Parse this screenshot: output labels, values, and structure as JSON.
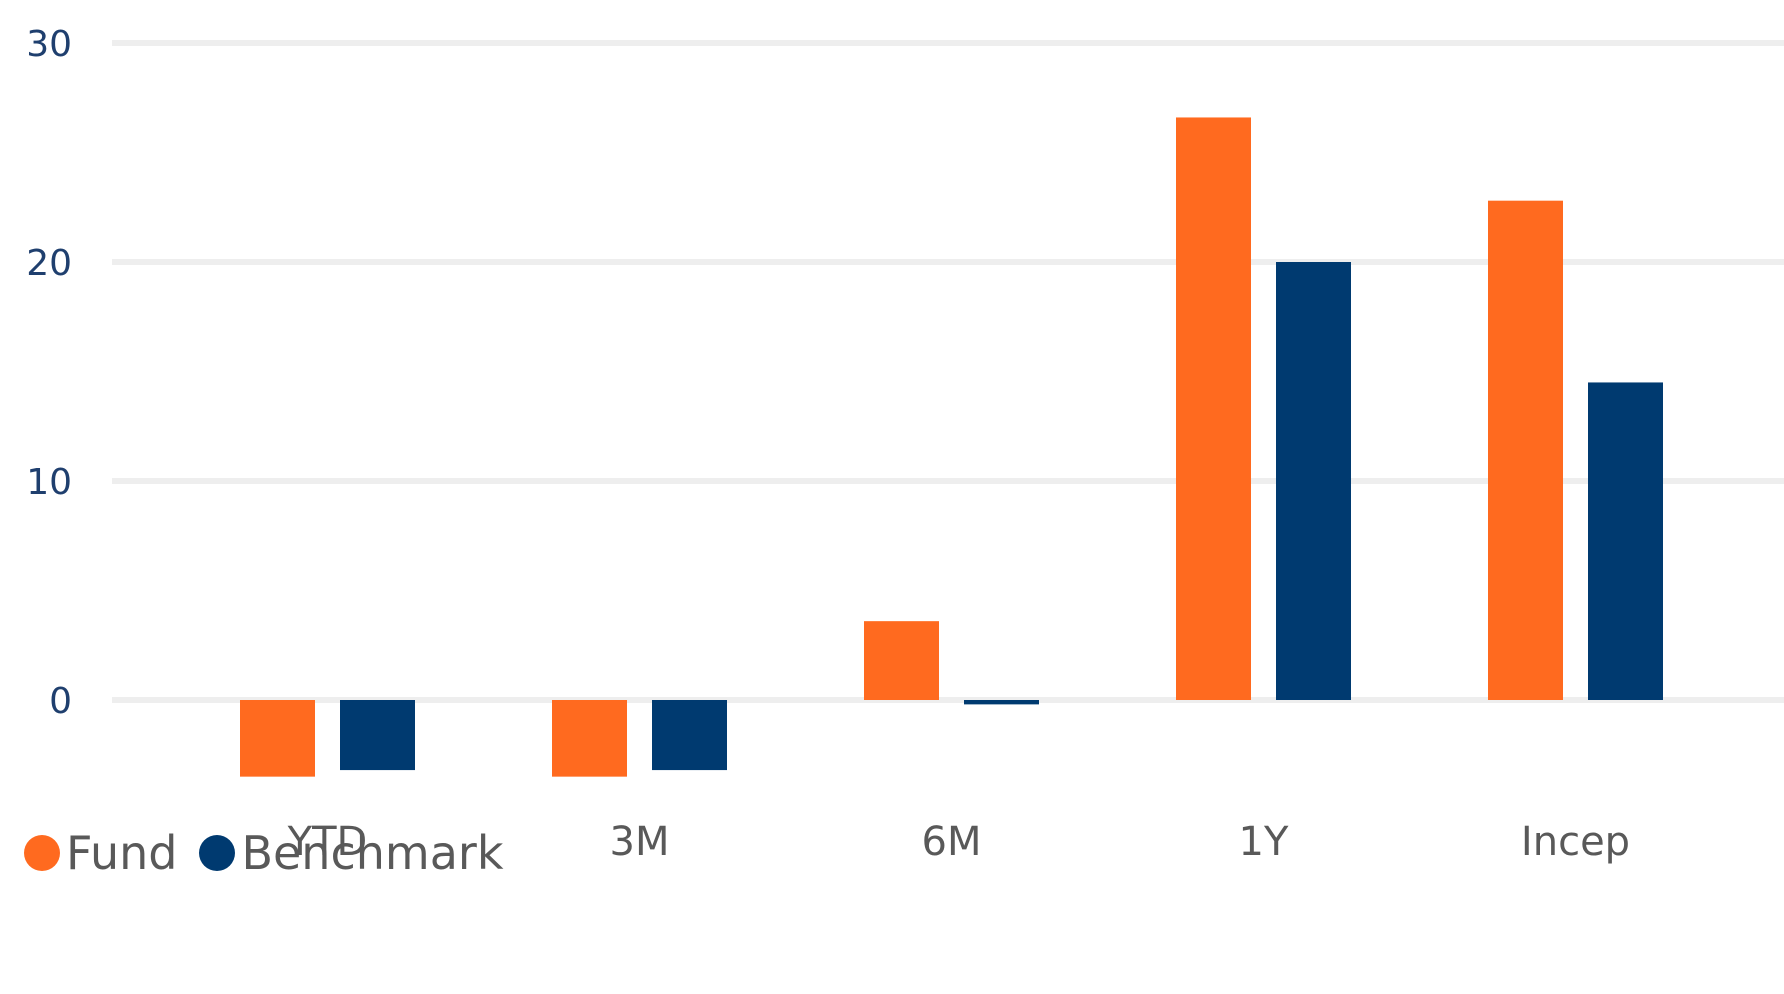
{
  "chart_data": {
    "type": "bar",
    "categories": [
      "YTD",
      "3M",
      "6M",
      "1Y",
      "Incep"
    ],
    "series": [
      {
        "name": "Fund",
        "color": "#ff6a1f",
        "values": [
          -3.5,
          -3.5,
          3.6,
          26.6,
          22.8
        ]
      },
      {
        "name": "Benchmark",
        "color": "#003a70",
        "values": [
          -3.2,
          -3.2,
          -0.2,
          20.0,
          14.5
        ]
      }
    ],
    "yticks": [
      0,
      10,
      20,
      30
    ],
    "ylim": [
      -6,
      30
    ],
    "grid": true,
    "legend_position": "bottom-left"
  }
}
